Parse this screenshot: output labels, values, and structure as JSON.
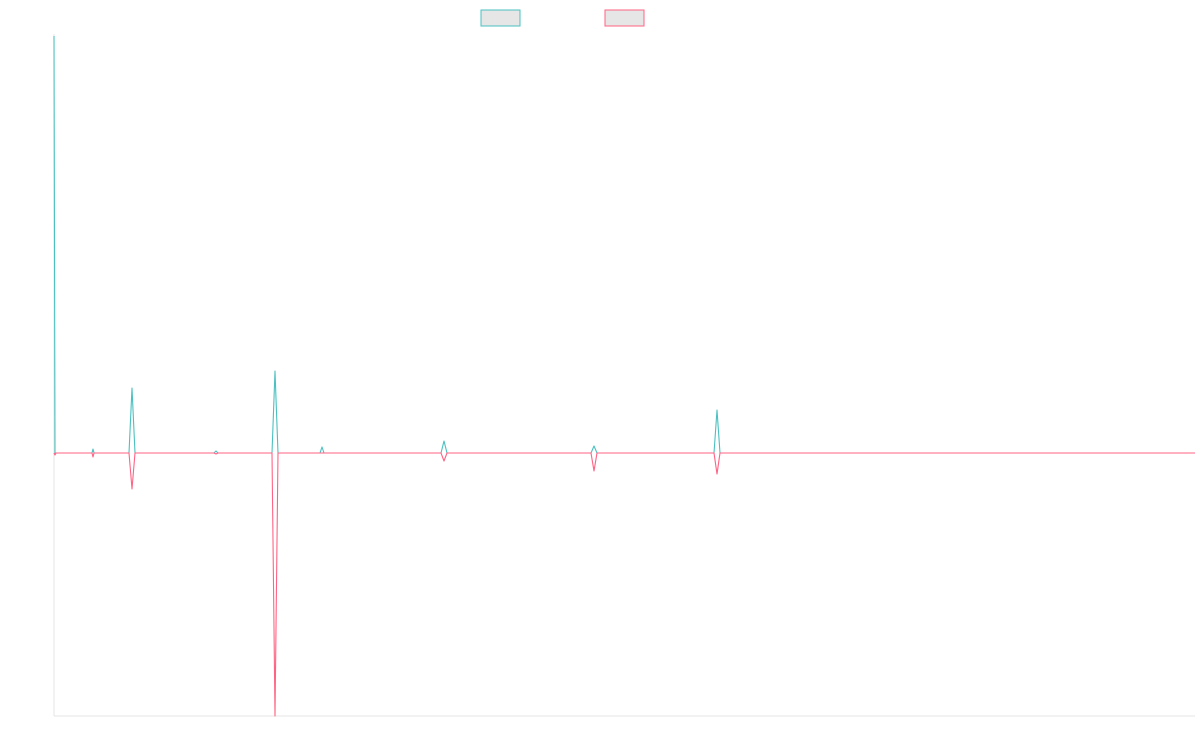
{
  "chart_data": {
    "type": "line",
    "title": "",
    "xlabel": "",
    "ylabel": "",
    "grid": false,
    "legend_position": "top-center",
    "x_range": [
      0,
      1141
    ],
    "ylim": [
      -263,
      417
    ],
    "series": [
      {
        "name": "",
        "color": "#4bc0c0",
        "legend_fill": "#e6e6e6",
        "points": [
          [
            0,
            417
          ],
          [
            1,
            0
          ],
          [
            2,
            0
          ],
          [
            38,
            0
          ],
          [
            39,
            4
          ],
          [
            40,
            0
          ],
          [
            75,
            0
          ],
          [
            78,
            65
          ],
          [
            81,
            0
          ],
          [
            160,
            0
          ],
          [
            162,
            2
          ],
          [
            164,
            0
          ],
          [
            218,
            0
          ],
          [
            221,
            82
          ],
          [
            224,
            0
          ],
          [
            266,
            0
          ],
          [
            268,
            6
          ],
          [
            270,
            0
          ],
          [
            387,
            0
          ],
          [
            390,
            12
          ],
          [
            393,
            0
          ],
          [
            537,
            0
          ],
          [
            540,
            7
          ],
          [
            543,
            0
          ],
          [
            660,
            0
          ],
          [
            663,
            43
          ],
          [
            666,
            0
          ],
          [
            1141,
            0
          ]
        ]
      },
      {
        "name": "",
        "color": "#ff6384",
        "legend_fill": "#e6e6e6",
        "points": [
          [
            0,
            0
          ],
          [
            1,
            -2
          ],
          [
            2,
            0
          ],
          [
            38,
            0
          ],
          [
            39,
            -4
          ],
          [
            40,
            0
          ],
          [
            75,
            0
          ],
          [
            78,
            -36
          ],
          [
            81,
            0
          ],
          [
            160,
            0
          ],
          [
            162,
            -1
          ],
          [
            164,
            0
          ],
          [
            218,
            0
          ],
          [
            221,
            -263
          ],
          [
            224,
            0
          ],
          [
            387,
            0
          ],
          [
            390,
            -8
          ],
          [
            393,
            0
          ],
          [
            537,
            0
          ],
          [
            540,
            -18
          ],
          [
            543,
            0
          ],
          [
            660,
            0
          ],
          [
            663,
            -21
          ],
          [
            666,
            0
          ],
          [
            1141,
            0
          ]
        ]
      }
    ]
  }
}
